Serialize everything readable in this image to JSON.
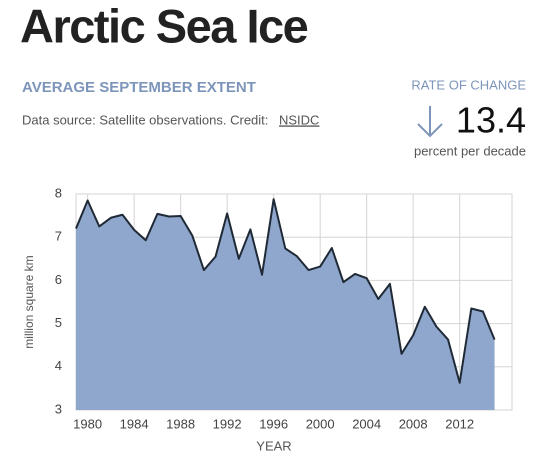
{
  "header": {
    "title": "Arctic Sea Ice",
    "subtitle": "AVERAGE SEPTEMBER EXTENT",
    "source": "Data source: Satellite observations. Credit:",
    "credit_link": "NSIDC"
  },
  "rate_of_change": {
    "label": "RATE OF CHANGE",
    "value": 13.4,
    "unit": "percent per decade"
  },
  "chart_data": {
    "type": "area",
    "x": [
      1979,
      1980,
      1981,
      1982,
      1983,
      1984,
      1985,
      1986,
      1987,
      1988,
      1989,
      1990,
      1991,
      1992,
      1993,
      1994,
      1995,
      1996,
      1997,
      1998,
      1999,
      2000,
      2001,
      2002,
      2003,
      2004,
      2005,
      2006,
      2007,
      2008,
      2009,
      2010,
      2011,
      2012,
      2013,
      2014,
      2015
    ],
    "values": [
      7.2,
      7.85,
      7.25,
      7.45,
      7.52,
      7.17,
      6.93,
      7.54,
      7.48,
      7.49,
      7.04,
      6.24,
      6.55,
      7.55,
      6.5,
      7.18,
      6.13,
      7.88,
      6.74,
      6.56,
      6.24,
      6.32,
      6.75,
      5.96,
      6.15,
      6.05,
      5.57,
      5.92,
      4.3,
      4.73,
      5.39,
      4.93,
      4.63,
      3.63,
      5.35,
      5.28,
      4.63
    ],
    "color": "#8fa7cc",
    "line_color": "#1f2a36",
    "xlabel": "YEAR",
    "ylabel": "million square km",
    "xlim": [
      1979,
      2016.5
    ],
    "ylim": [
      3,
      8
    ],
    "xticks": [
      1980,
      1984,
      1988,
      1992,
      1996,
      2000,
      2004,
      2008,
      2012
    ],
    "yticks": [
      3,
      4,
      5,
      6,
      7,
      8
    ],
    "grid": true
  }
}
